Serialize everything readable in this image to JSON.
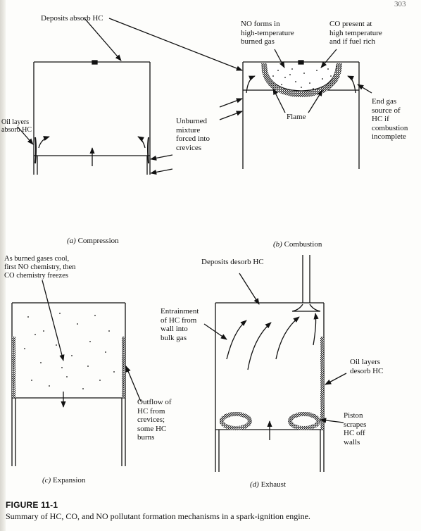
{
  "figure": {
    "title": "FIGURE 11-1",
    "caption": "Summary of HC, CO, and NO pollutant formation mechanisms in a spark-ignition engine.",
    "header_fragment": "303"
  },
  "panels": [
    {
      "id": "a",
      "letter": "(a)",
      "name": "Compression",
      "labels": [
        "Deposits absorb HC",
        "Oil layers\nabsorb HC",
        "Unburned\nmixture\nforced into\ncrevices"
      ]
    },
    {
      "id": "b",
      "letter": "(b)",
      "name": "Combustion",
      "labels": [
        "NO forms in\nhigh-temperature\nburned gas",
        "CO present at\nhigh temperature\nand if fuel rich",
        "Flame",
        "End gas\nsource of\nHC if\ncombustion\nincomplete"
      ]
    },
    {
      "id": "c",
      "letter": "(c)",
      "name": "Expansion",
      "labels": [
        "As burned gases cool,\nfirst NO chemistry, then\nCO chemistry freezes",
        "Outflow of\nHC from\ncrevices;\nsome HC\nburns"
      ]
    },
    {
      "id": "d",
      "letter": "(d)",
      "name": "Exhaust",
      "labels": [
        "Deposits desorb HC",
        "Entrainment\nof HC from\nwall into\nbulk gas",
        "Oil layers\ndesorb HC",
        "Piston\nscrapes\nHC off\nwalls"
      ]
    }
  ]
}
